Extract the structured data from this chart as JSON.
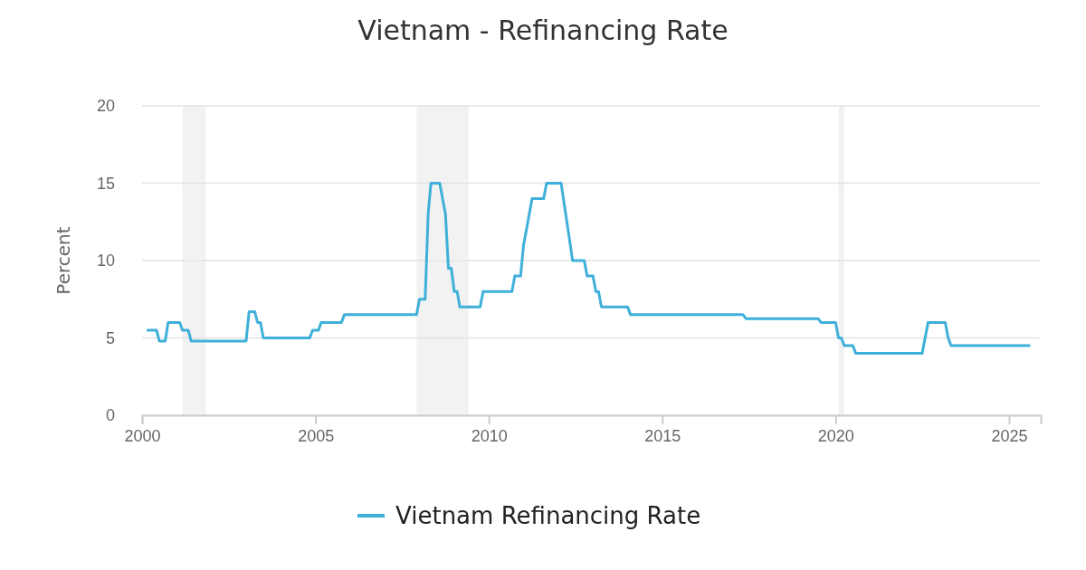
{
  "chart_data": {
    "type": "line",
    "title": "Vietnam - Refinancing Rate",
    "ylabel": "Percent",
    "x": [
      "2000-03",
      "2000-06",
      "2000-07",
      "2000-09",
      "2000-10",
      "2001-02",
      "2001-03",
      "2001-05",
      "2001-06",
      "2003-01",
      "2003-02",
      "2003-04",
      "2003-05",
      "2003-06",
      "2003-07",
      "2004-11",
      "2004-12",
      "2005-02",
      "2005-03",
      "2005-10",
      "2005-11",
      "2007-12",
      "2008-01",
      "2008-03",
      "2008-04",
      "2008-05",
      "2008-08",
      "2008-10",
      "2008-11",
      "2008-12",
      "2009-01",
      "2009-02",
      "2009-03",
      "2009-10",
      "2009-11",
      "2010-09",
      "2010-10",
      "2010-12",
      "2011-01",
      "2011-02",
      "2011-04",
      "2011-08",
      "2011-09",
      "2012-02",
      "2012-06",
      "2012-10",
      "2012-11",
      "2013-01",
      "2013-02",
      "2013-03",
      "2013-04",
      "2014-01",
      "2014-02",
      "2017-05",
      "2017-06",
      "2019-07",
      "2019-08",
      "2020-01",
      "2020-02",
      "2020-03",
      "2020-04",
      "2020-07",
      "2020-08",
      "2022-07",
      "2022-09",
      "2023-03",
      "2023-04",
      "2023-05",
      "2025-08"
    ],
    "series": [
      {
        "name": "Vietnam Refinancing Rate",
        "color": "#3eb0d9",
        "values": [
          5.5,
          5.5,
          4.8,
          4.8,
          6.0,
          6.0,
          5.5,
          5.5,
          4.8,
          4.8,
          6.7,
          6.7,
          6.0,
          6.0,
          5.0,
          5.0,
          5.5,
          5.5,
          6.0,
          6.0,
          6.5,
          6.5,
          7.5,
          7.5,
          13,
          15,
          15,
          13,
          9.5,
          9.5,
          8.0,
          8.0,
          7.0,
          7.0,
          8.0,
          8.0,
          9.0,
          9.0,
          11,
          12,
          14,
          14,
          15,
          15,
          10,
          10,
          9,
          9,
          8,
          8,
          7,
          7,
          6.5,
          6.5,
          6.25,
          6.25,
          6.0,
          6.0,
          5.0,
          5.0,
          4.5,
          4.5,
          4.0,
          4.0,
          6.0,
          6.0,
          5.0,
          4.5,
          4.5
        ]
      }
    ],
    "xlim": [
      "2000-01",
      "2025-12"
    ],
    "xticks": [
      "2000",
      "2005",
      "2010",
      "2015",
      "2020",
      "2025"
    ],
    "ylim": [
      0,
      20
    ],
    "yticks": [
      0,
      5,
      10,
      15,
      20
    ],
    "grid": "y",
    "legend": "bottom",
    "marker": "none",
    "line_style": "solid",
    "bands": [
      {
        "axis": "x",
        "from": "2001-03",
        "to": "2001-11",
        "color": "#f2f2f2"
      },
      {
        "axis": "x",
        "from": "2007-12",
        "to": "2009-06",
        "color": "#f2f2f2"
      },
      {
        "axis": "x",
        "from": "2020-02",
        "to": "2020-04",
        "color": "#f2f2f2"
      }
    ]
  }
}
